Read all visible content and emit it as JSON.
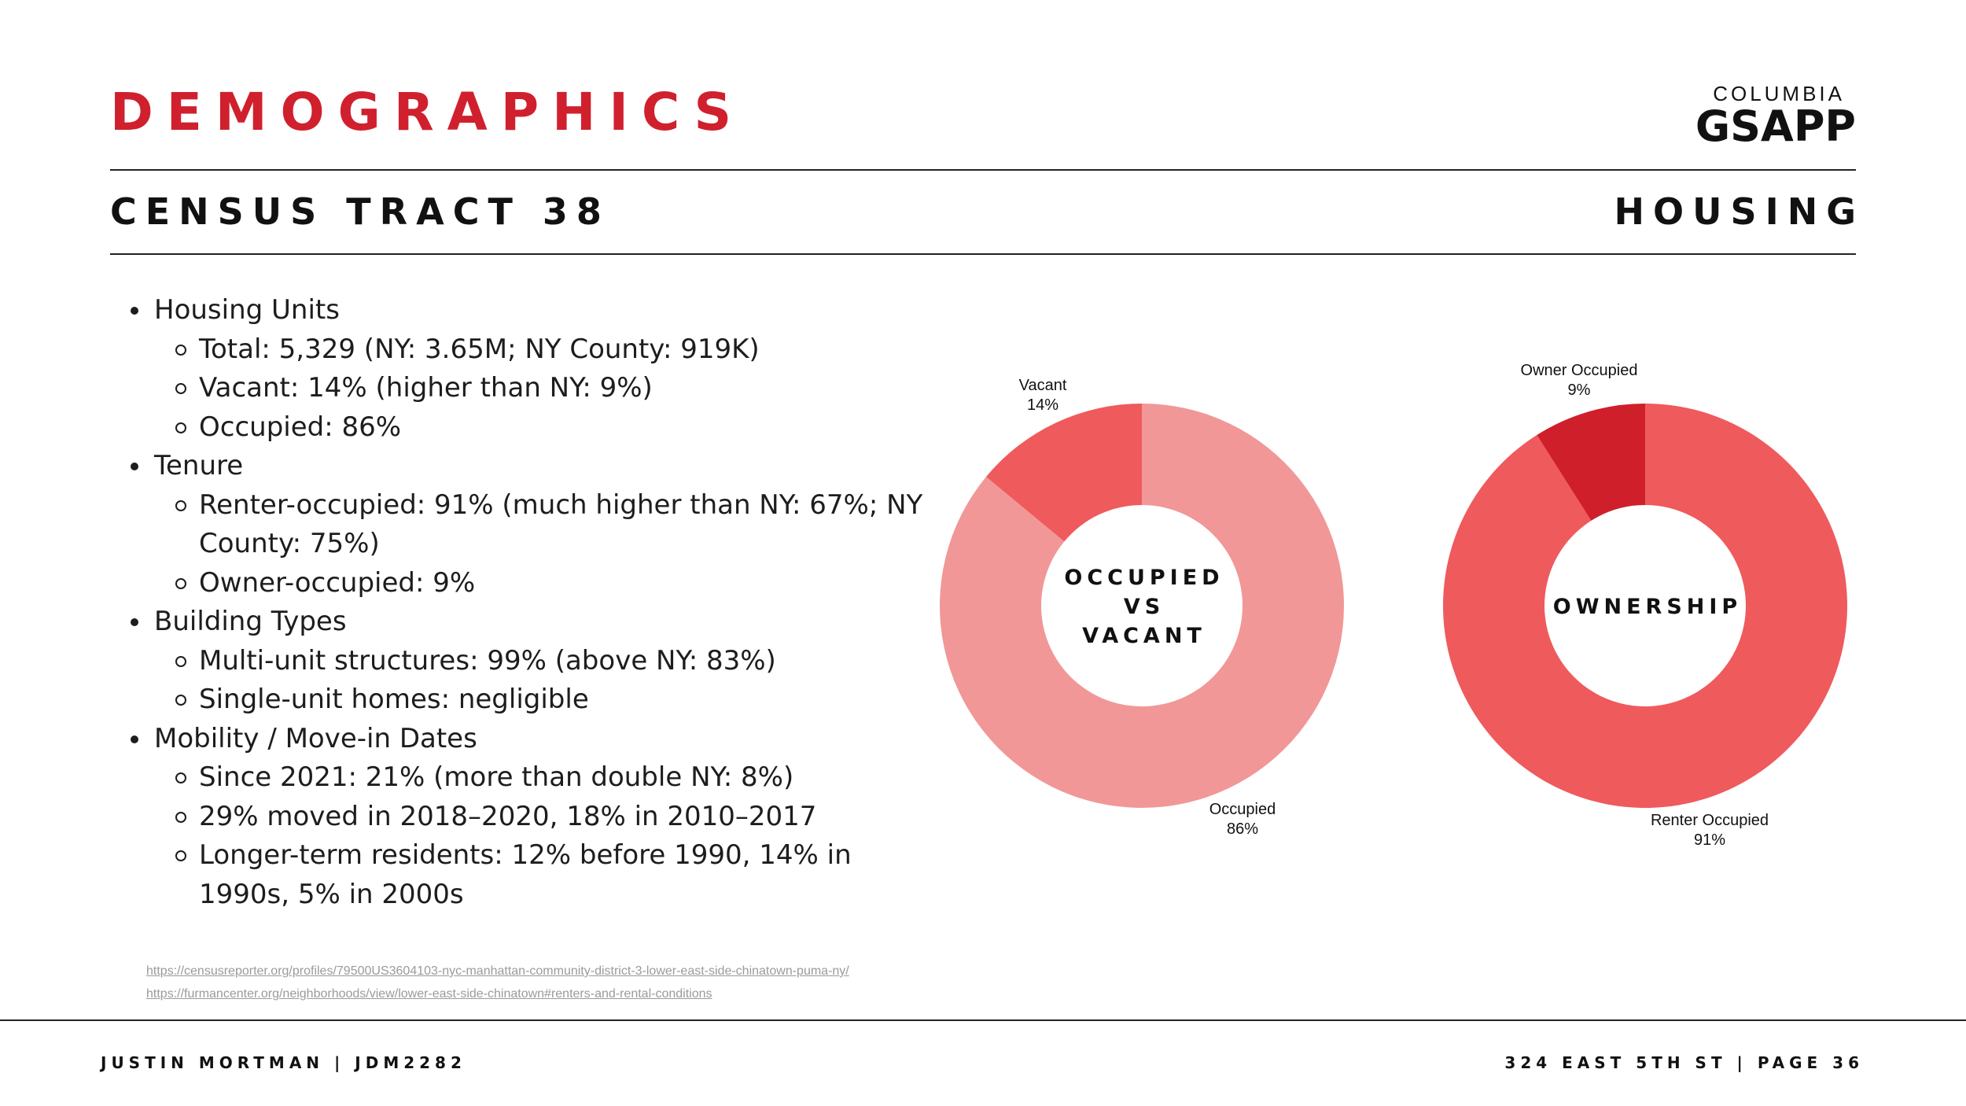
{
  "header": {
    "title": "DEMOGRAPHICS",
    "logo_top": "COLUMBIA",
    "logo_main": "GSAPP",
    "subtitle_left": "CENSUS TRACT 38",
    "subtitle_right": "HOUSING"
  },
  "bullets": [
    {
      "label": "Housing Units",
      "items": [
        "Total: 5,329 (NY: 3.65M; NY County: 919K)",
        "Vacant: 14% (higher than NY: 9%)",
        "Occupied: 86%"
      ]
    },
    {
      "label": "Tenure",
      "items": [
        "Renter-occupied: 91% (much higher than NY: 67%; NY County: 75%)",
        "Owner-occupied: 9%"
      ]
    },
    {
      "label": "Building Types",
      "items": [
        "Multi-unit structures: 99% (above NY: 83%)",
        "Single-unit homes: negligible"
      ]
    },
    {
      "label": "Mobility / Move-in Dates",
      "items": [
        "Since 2021: 21% (more than double NY: 8%)",
        "29% moved in 2018–2020, 18% in 2010–2017",
        "Longer-term residents: 12% before 1990, 14% in 1990s, 5% in 2000s"
      ]
    }
  ],
  "sources": [
    "https://censusreporter.org/profiles/79500US3604103-nyc-manhattan-community-district-3-lower-east-side-chinatown-puma-ny/",
    "https://furmancenter.org/neighborhoods/view/lower-east-side-chinatown#renters-and-rental-conditions"
  ],
  "footer": {
    "left": "JUSTIN MORTMAN | JDM2282",
    "right": "324 EAST 5TH ST | PAGE 36"
  },
  "colors": {
    "accent": "#d0202e"
  },
  "chart_data": [
    {
      "type": "pie",
      "subtype": "donut",
      "center_label": [
        "OCCUPIED",
        "VS",
        "VACANT"
      ],
      "categories": [
        "Occupied",
        "Vacant"
      ],
      "values": [
        86,
        14
      ],
      "labels": [
        "86%",
        "14%"
      ],
      "colors": [
        "#f19797",
        "#ef5a5d"
      ]
    },
    {
      "type": "pie",
      "subtype": "donut",
      "center_label": [
        "OWNERSHIP"
      ],
      "categories": [
        "Renter Occupied",
        "Owner Occupied"
      ],
      "values": [
        91,
        9
      ],
      "labels": [
        "91%",
        "9%"
      ],
      "colors": [
        "#ef5a5d",
        "#cf1f2a"
      ]
    }
  ]
}
